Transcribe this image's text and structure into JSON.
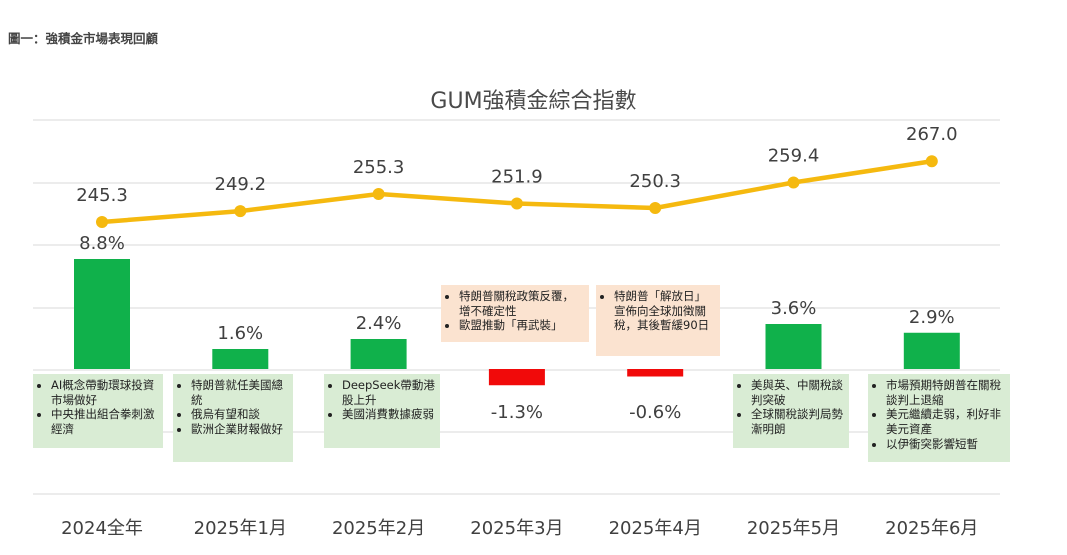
{
  "figure_label": "圖一：強積金市場表現回顧",
  "chart_data": {
    "title": "GUM強積金綜合指數",
    "categories": [
      "2024全年",
      "2025年1月",
      "2025年2月",
      "2025年3月",
      "2025年4月",
      "2025年5月",
      "2025年6月"
    ],
    "series": [
      {
        "type": "line",
        "values": [
          245.3,
          249.2,
          255.3,
          251.9,
          250.3,
          259.4,
          267.0
        ],
        "labels": [
          "245.3",
          "249.2",
          "255.3",
          "251.9",
          "250.3",
          "259.4",
          "267.0"
        ],
        "color": "#f5b90f"
      },
      {
        "type": "bar",
        "values": [
          8.8,
          1.6,
          2.4,
          -1.3,
          -0.6,
          3.6,
          2.9
        ],
        "labels": [
          "8.8%",
          "1.6%",
          "2.4%",
          "-1.3%",
          "-0.6%",
          "3.6%",
          "2.9%"
        ],
        "positive_color": "#10b14b",
        "negative_color": "#f10a0a"
      }
    ],
    "annotations": [
      {
        "style": "green",
        "items": [
          "AI概念帶動環球投資市場做好",
          "中央推出組合拳刺激經濟"
        ]
      },
      {
        "style": "green",
        "items": [
          "特朗普就任美國總統",
          "俄烏有望和談",
          "歐洲企業財報做好"
        ]
      },
      {
        "style": "green",
        "items": [
          "DeepSeek帶動港股上升",
          "美國消費數據疲弱"
        ]
      },
      {
        "style": "peach",
        "items": [
          "特朗普關稅政策反覆，增不確定性",
          "歐盟推動「再武裝」"
        ]
      },
      {
        "style": "peach",
        "items": [
          "特朗普「解放日」宣佈向全球加徵關稅，其後暫緩90日"
        ]
      },
      {
        "style": "green",
        "items": [
          "美與英、中關稅談判突破",
          "全球關稅談判局勢漸明朗"
        ]
      },
      {
        "style": "green",
        "items": [
          "市場預期特朗普在關稅談判上退縮",
          "美元繼續走弱，利好非美元資產",
          "以伊衝突影響短暫"
        ]
      }
    ],
    "grid": true
  }
}
